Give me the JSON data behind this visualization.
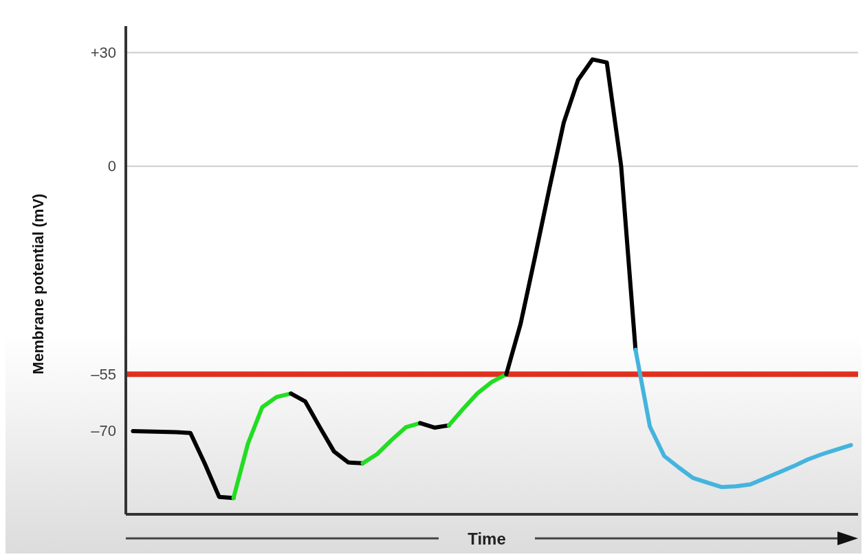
{
  "chart_data": {
    "type": "line",
    "xlabel": "Time",
    "ylabel": "Membrane potential (mV)",
    "categories": [
      null,
      null,
      null,
      null,
      null,
      null,
      null,
      null,
      null,
      null,
      null,
      null,
      null,
      null,
      null,
      null,
      null,
      null,
      null,
      null,
      null,
      null,
      null,
      null,
      null,
      null,
      null,
      null,
      null,
      null,
      null,
      null,
      null,
      null,
      null,
      null,
      null,
      null,
      null,
      null,
      null,
      null,
      null,
      null,
      null,
      null,
      null,
      null,
      null,
      null,
      null
    ],
    "ylim": [
      -92,
      37
    ],
    "yticks": [
      {
        "value": 30,
        "label": "+30"
      },
      {
        "value": 0,
        "label": "0"
      },
      {
        "value": -55,
        "label": "–55"
      },
      {
        "value": -70,
        "label": "–70"
      }
    ],
    "tick_labels": "y",
    "grid": false,
    "line_style": "solid",
    "marker": "none",
    "ref_lines": [
      {
        "axis": "y",
        "value": 30,
        "color": "#cccccc"
      },
      {
        "axis": "y",
        "value": 0,
        "color": "#cccccc"
      },
      {
        "axis": "y",
        "value": -55,
        "color": "#e0301e"
      }
    ],
    "series": [
      {
        "color": "#000000",
        "values": [
          -70,
          -70.1,
          -70.2,
          -70.3,
          -70.5,
          -78.6,
          -87.4,
          -87.7,
          null,
          null,
          null,
          null,
          null,
          null,
          null,
          null,
          null,
          null,
          null,
          null,
          null,
          null,
          null,
          null,
          null,
          null,
          null,
          null,
          null,
          null,
          null,
          null,
          null,
          null,
          null,
          null,
          null,
          null,
          null,
          null,
          null,
          null,
          null,
          null,
          null,
          null,
          null,
          null,
          null,
          null,
          null
        ]
      },
      {
        "color": "#22dd22",
        "values": [
          null,
          null,
          null,
          null,
          null,
          null,
          null,
          -87.7,
          -73.4,
          -63.7,
          -61,
          -60.1,
          null,
          null,
          null,
          null,
          null,
          null,
          null,
          null,
          null,
          null,
          null,
          null,
          null,
          null,
          null,
          null,
          null,
          null,
          null,
          null,
          null,
          null,
          null,
          null,
          null,
          null,
          null,
          null,
          null,
          null,
          null,
          null,
          null,
          null,
          null,
          null,
          null,
          null,
          null
        ]
      },
      {
        "color": "#000000",
        "values": [
          null,
          null,
          null,
          null,
          null,
          null,
          null,
          null,
          null,
          null,
          null,
          -60.1,
          -62.2,
          -68.9,
          -75.4,
          -78.3,
          -78.5,
          null,
          null,
          null,
          null,
          null,
          null,
          null,
          null,
          null,
          null,
          null,
          null,
          null,
          null,
          null,
          null,
          null,
          null,
          null,
          null,
          null,
          null,
          null,
          null,
          null,
          null,
          null,
          null,
          null,
          null,
          null,
          null,
          null,
          null
        ]
      },
      {
        "color": "#22dd22",
        "values": [
          null,
          null,
          null,
          null,
          null,
          null,
          null,
          null,
          null,
          null,
          null,
          null,
          null,
          null,
          null,
          null,
          -78.5,
          -76.1,
          -72.4,
          -69,
          -67.9,
          null,
          null,
          null,
          null,
          null,
          null,
          null,
          null,
          null,
          null,
          null,
          null,
          null,
          null,
          null,
          null,
          null,
          null,
          null,
          null,
          null,
          null,
          null,
          null,
          null,
          null,
          null,
          null,
          null,
          null
        ]
      },
      {
        "color": "#000000",
        "values": [
          null,
          null,
          null,
          null,
          null,
          null,
          null,
          null,
          null,
          null,
          null,
          null,
          null,
          null,
          null,
          null,
          null,
          null,
          null,
          null,
          -67.9,
          -69.1,
          -68.5,
          null,
          null,
          null,
          null,
          null,
          null,
          null,
          null,
          null,
          null,
          null,
          null,
          null,
          null,
          null,
          null,
          null,
          null,
          null,
          null,
          null,
          null,
          null,
          null,
          null,
          null,
          null,
          null
        ]
      },
      {
        "color": "#22dd22",
        "values": [
          null,
          null,
          null,
          null,
          null,
          null,
          null,
          null,
          null,
          null,
          null,
          null,
          null,
          null,
          null,
          null,
          null,
          null,
          null,
          null,
          null,
          null,
          -68.5,
          -64.1,
          -60,
          -57,
          -55,
          null,
          null,
          null,
          null,
          null,
          null,
          null,
          null,
          null,
          null,
          null,
          null,
          null,
          null,
          null,
          null,
          null,
          null,
          null,
          null,
          null,
          null,
          null,
          null
        ]
      },
      {
        "color": "#000000",
        "values": [
          null,
          null,
          null,
          null,
          null,
          null,
          null,
          null,
          null,
          null,
          null,
          null,
          null,
          null,
          null,
          null,
          null,
          null,
          null,
          null,
          null,
          null,
          null,
          null,
          null,
          null,
          -55,
          -41.6,
          -24,
          -5.9,
          11.5,
          22.8,
          28.2,
          27.4,
          0,
          -48.5,
          null,
          null,
          null,
          null,
          null,
          null,
          null,
          null,
          null,
          null,
          null,
          null,
          null,
          null,
          null
        ]
      },
      {
        "color": "#44b4dd",
        "values": [
          null,
          null,
          null,
          null,
          null,
          null,
          null,
          null,
          null,
          null,
          null,
          null,
          null,
          null,
          null,
          null,
          null,
          null,
          null,
          null,
          null,
          null,
          null,
          null,
          null,
          null,
          null,
          null,
          null,
          null,
          null,
          null,
          null,
          null,
          null,
          -48.5,
          -68.8,
          -76.6,
          -79.6,
          -82.4,
          -83.6,
          -84.8,
          -84.6,
          -84.1,
          -82.5,
          -80.9,
          -79.3,
          -77.5,
          -76.1,
          -74.9,
          -73.7
        ]
      }
    ]
  }
}
